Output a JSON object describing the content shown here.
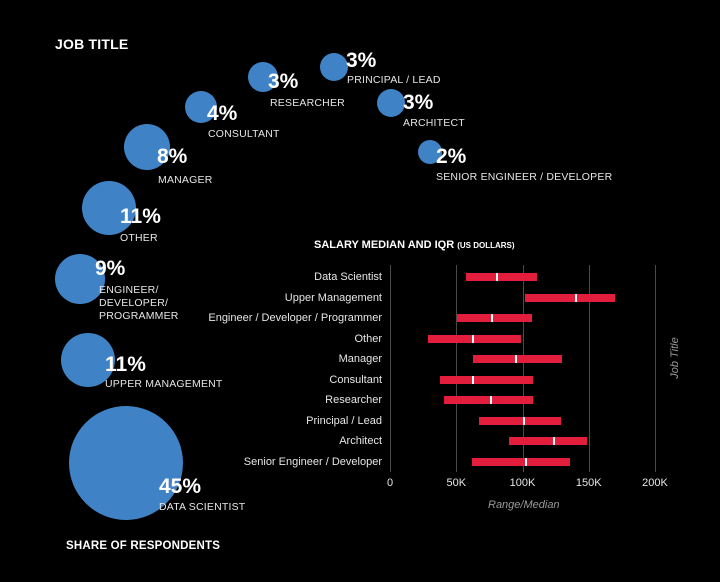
{
  "titles": {
    "job_title": "JOB TITLE",
    "share": "SHARE OF RESPONDENTS"
  },
  "colors": {
    "bubble": "#3f83c6",
    "bar": "#e21e3c",
    "median": "#ffffff",
    "background": "#000000"
  },
  "bubbles": [
    {
      "pct": "45%",
      "label": "DATA SCIENTIST",
      "share": 45
    },
    {
      "pct": "11%",
      "label": "UPPER MANAGEMENT",
      "share": 11
    },
    {
      "pct": "9%",
      "label": "ENGINEER/ DEVELOPER/ PROGRAMMER",
      "share": 9
    },
    {
      "pct": "11%",
      "label": "OTHER",
      "share": 11
    },
    {
      "pct": "8%",
      "label": "MANAGER",
      "share": 8
    },
    {
      "pct": "4%",
      "label": "CONSULTANT",
      "share": 4
    },
    {
      "pct": "3%",
      "label": "RESEARCHER",
      "share": 3
    },
    {
      "pct": "3%",
      "label": "PRINCIPAL / LEAD",
      "share": 3
    },
    {
      "pct": "3%",
      "label": "ARCHITECT",
      "share": 3
    },
    {
      "pct": "2%",
      "label": "SENIOR ENGINEER / DEVELOPER",
      "share": 2
    }
  ],
  "chart_data": {
    "type": "bar",
    "title": "SALARY MEDIAN AND IQR",
    "title_suffix": "(US DOLLARS)",
    "xlabel": "Range/Median",
    "ylabel": "Job Title",
    "xlim": [
      0,
      200000
    ],
    "xticks": [
      "0",
      "50K",
      "100K",
      "150K",
      "200K"
    ],
    "grid": true,
    "categories": [
      "Data Scientist",
      "Upper Management",
      "Engineer / Developer / Programmer",
      "Other",
      "Manager",
      "Consultant",
      "Researcher",
      "Principal / Lead",
      "Architect",
      "Senior Engineer / Developer"
    ],
    "q1": [
      57000,
      102000,
      50500,
      29000,
      62500,
      38000,
      41000,
      67000,
      90000,
      62000
    ],
    "median": [
      80500,
      140000,
      77000,
      63000,
      95000,
      62500,
      76000,
      101000,
      124000,
      103000
    ],
    "q3": [
      111000,
      170000,
      107500,
      98500,
      130000,
      108000,
      108000,
      129000,
      149000,
      136000
    ]
  }
}
